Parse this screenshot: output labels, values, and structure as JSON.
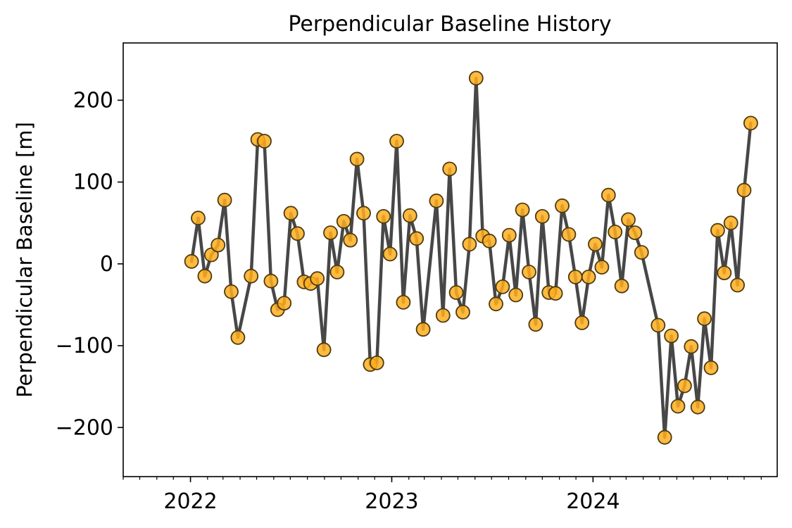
{
  "chart_data": {
    "type": "line",
    "title": "Perpendicular Baseline History",
    "xlabel": "",
    "ylabel": "Perpendicular Baseline [m]",
    "ylim": [
      -260,
      270
    ],
    "xlim": [
      "2021-09-01",
      "2024-11-30"
    ],
    "grid": false,
    "line_color": "#474747",
    "marker_color": "#ffae1f",
    "marker_edge_color": "#4d3a10",
    "x_ticks": [
      {
        "date": "2022-01-01",
        "label": "2022"
      },
      {
        "date": "2023-01-01",
        "label": "2023"
      },
      {
        "date": "2024-01-01",
        "label": "2024"
      }
    ],
    "y_ticks": [
      {
        "value": 200,
        "label": "200"
      },
      {
        "value": 100,
        "label": "100"
      },
      {
        "value": 0,
        "label": "0"
      },
      {
        "value": -100,
        "label": "−100"
      },
      {
        "value": -200,
        "label": "−200"
      }
    ],
    "points": [
      [
        "2022-01-03",
        3
      ],
      [
        "2022-01-15",
        56
      ],
      [
        "2022-01-27",
        -15
      ],
      [
        "2022-02-08",
        11
      ],
      [
        "2022-02-20",
        23
      ],
      [
        "2022-03-04",
        78
      ],
      [
        "2022-03-16",
        -34
      ],
      [
        "2022-03-28",
        -90
      ],
      [
        "2022-04-21",
        -15
      ],
      [
        "2022-05-03",
        152
      ],
      [
        "2022-05-15",
        150
      ],
      [
        "2022-05-27",
        -21
      ],
      [
        "2022-06-08",
        -56
      ],
      [
        "2022-06-20",
        -48
      ],
      [
        "2022-07-02",
        62
      ],
      [
        "2022-07-14",
        37
      ],
      [
        "2022-07-26",
        -22
      ],
      [
        "2022-08-07",
        -24
      ],
      [
        "2022-08-19",
        -18
      ],
      [
        "2022-08-31",
        -105
      ],
      [
        "2022-09-12",
        38
      ],
      [
        "2022-09-24",
        -10
      ],
      [
        "2022-10-06",
        52
      ],
      [
        "2022-10-18",
        29
      ],
      [
        "2022-10-30",
        128
      ],
      [
        "2022-11-11",
        62
      ],
      [
        "2022-11-23",
        -123
      ],
      [
        "2022-12-05",
        -121
      ],
      [
        "2022-12-17",
        58
      ],
      [
        "2022-12-29",
        12
      ],
      [
        "2023-01-10",
        150
      ],
      [
        "2023-01-22",
        -47
      ],
      [
        "2023-02-03",
        59
      ],
      [
        "2023-02-15",
        31
      ],
      [
        "2023-02-27",
        -80
      ],
      [
        "2023-03-23",
        77
      ],
      [
        "2023-04-04",
        -63
      ],
      [
        "2023-04-16",
        116
      ],
      [
        "2023-04-28",
        -35
      ],
      [
        "2023-05-10",
        -59
      ],
      [
        "2023-05-22",
        24
      ],
      [
        "2023-06-03",
        227
      ],
      [
        "2023-06-15",
        34
      ],
      [
        "2023-06-27",
        28
      ],
      [
        "2023-07-09",
        -49
      ],
      [
        "2023-07-21",
        -28
      ],
      [
        "2023-08-02",
        35
      ],
      [
        "2023-08-14",
        -38
      ],
      [
        "2023-08-26",
        66
      ],
      [
        "2023-09-07",
        -10
      ],
      [
        "2023-09-19",
        -74
      ],
      [
        "2023-10-01",
        58
      ],
      [
        "2023-10-13",
        -35
      ],
      [
        "2023-10-25",
        -36
      ],
      [
        "2023-11-06",
        71
      ],
      [
        "2023-11-18",
        36
      ],
      [
        "2023-11-30",
        -16
      ],
      [
        "2023-12-12",
        -72
      ],
      [
        "2023-12-24",
        -16
      ],
      [
        "2024-01-05",
        24
      ],
      [
        "2024-01-17",
        -4
      ],
      [
        "2024-01-29",
        84
      ],
      [
        "2024-02-10",
        39
      ],
      [
        "2024-02-22",
        -27
      ],
      [
        "2024-03-05",
        54
      ],
      [
        "2024-03-17",
        38
      ],
      [
        "2024-03-29",
        14
      ],
      [
        "2024-04-28",
        -75
      ],
      [
        "2024-05-10",
        -212
      ],
      [
        "2024-05-22",
        -88
      ],
      [
        "2024-06-03",
        -174
      ],
      [
        "2024-06-15",
        -149
      ],
      [
        "2024-06-27",
        -101
      ],
      [
        "2024-07-09",
        -175
      ],
      [
        "2024-07-21",
        -67
      ],
      [
        "2024-08-02",
        -127
      ],
      [
        "2024-08-14",
        41
      ],
      [
        "2024-08-26",
        -11
      ],
      [
        "2024-09-07",
        50
      ],
      [
        "2024-09-19",
        -26
      ],
      [
        "2024-10-01",
        90
      ],
      [
        "2024-10-13",
        172
      ]
    ]
  }
}
